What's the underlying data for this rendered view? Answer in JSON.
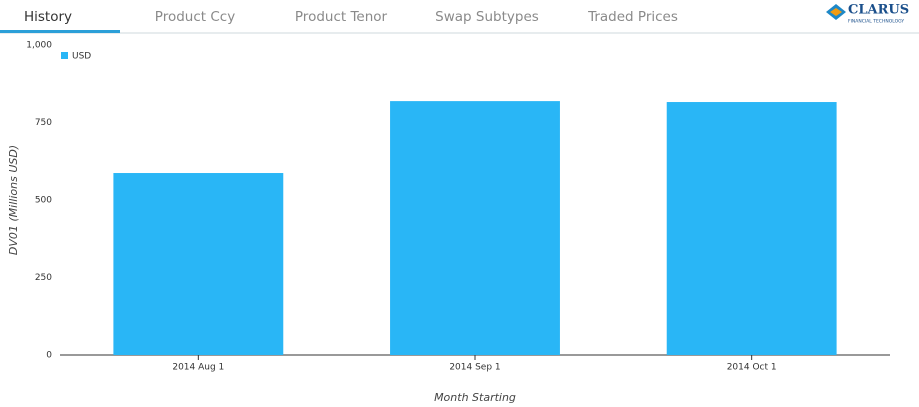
{
  "tabs": [
    "History",
    "Product Ccy",
    "Product Tenor",
    "Swap Subtypes",
    "Traded Prices"
  ],
  "active_tab": 0,
  "logo": {
    "name": "CLARUS",
    "tagline": "FINANCIAL TECHNOLOGY"
  },
  "chart_data": {
    "type": "bar",
    "categories": [
      "2014 Aug 1",
      "2014 Sep 1",
      "2014 Oct 1"
    ],
    "series": [
      {
        "name": "USD",
        "color": "#29b6f6",
        "values": [
          587,
          819,
          816
        ]
      }
    ],
    "x_label": "Month Starting",
    "y_label": "DV01 (Millions USD)",
    "ylim": [
      0,
      1000
    ],
    "yticks": [
      0,
      250,
      500,
      750,
      {
        "value": 1000,
        "label": "1,000"
      }
    ],
    "legend": "top-left",
    "grid": false
  }
}
